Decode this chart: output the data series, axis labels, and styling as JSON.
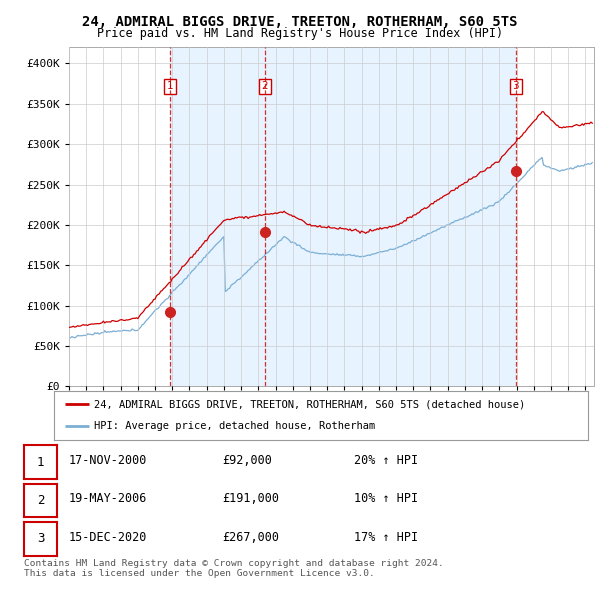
{
  "title_line1": "24, ADMIRAL BIGGS DRIVE, TREETON, ROTHERHAM, S60 5TS",
  "title_line2": "Price paid vs. HM Land Registry's House Price Index (HPI)",
  "ylim": [
    0,
    420000
  ],
  "yticks": [
    0,
    50000,
    100000,
    150000,
    200000,
    250000,
    300000,
    350000,
    400000
  ],
  "ytick_labels": [
    "£0",
    "£50K",
    "£100K",
    "£150K",
    "£200K",
    "£250K",
    "£300K",
    "£350K",
    "£400K"
  ],
  "xlim_start": 1995.0,
  "xlim_end": 2025.5,
  "sale_color": "#cc0000",
  "hpi_color": "#7bafd4",
  "shade_color": "#ddeeff",
  "sale_label": "24, ADMIRAL BIGGS DRIVE, TREETON, ROTHERHAM, S60 5TS (detached house)",
  "hpi_label": "HPI: Average price, detached house, Rotherham",
  "sale_dates": [
    2000.88,
    2006.38,
    2020.96
  ],
  "sale_prices": [
    92000,
    191000,
    267000
  ],
  "sale_numbers": [
    "1",
    "2",
    "3"
  ],
  "vline_color": "#cc0000",
  "table_data": [
    [
      "1",
      "17-NOV-2000",
      "£92,000",
      "20% ↑ HPI"
    ],
    [
      "2",
      "19-MAY-2006",
      "£191,000",
      "10% ↑ HPI"
    ],
    [
      "3",
      "15-DEC-2020",
      "£267,000",
      "17% ↑ HPI"
    ]
  ],
  "footnote": "Contains HM Land Registry data © Crown copyright and database right 2024.\nThis data is licensed under the Open Government Licence v3.0.",
  "background_color": "#ffffff",
  "plot_bg_color": "#ffffff",
  "grid_color": "#cccccc"
}
